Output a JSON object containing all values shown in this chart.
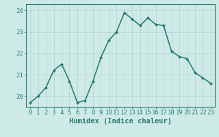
{
  "x": [
    0,
    1,
    2,
    3,
    4,
    5,
    6,
    7,
    8,
    9,
    10,
    11,
    12,
    13,
    14,
    15,
    16,
    17,
    18,
    19,
    20,
    21,
    22,
    23
  ],
  "y": [
    19.7,
    20.0,
    20.4,
    21.2,
    21.5,
    20.7,
    19.7,
    19.8,
    20.7,
    21.8,
    22.6,
    23.0,
    23.9,
    23.6,
    23.3,
    23.65,
    23.35,
    23.3,
    22.1,
    21.85,
    21.75,
    21.1,
    20.85,
    20.6
  ],
  "line_color": "#2d7d6e",
  "marker": "D",
  "marker_size": 2.0,
  "bg_color": "#ceeae7",
  "grid_color": "#b0d4d0",
  "xlabel": "Humidex (Indice chaleur)",
  "xlim": [
    -0.5,
    23.5
  ],
  "ylim": [
    19.5,
    24.3
  ],
  "yticks": [
    20,
    21,
    22,
    23,
    24
  ],
  "xticks": [
    0,
    1,
    2,
    3,
    4,
    5,
    6,
    7,
    8,
    9,
    10,
    11,
    12,
    13,
    14,
    15,
    16,
    17,
    18,
    19,
    20,
    21,
    22,
    23
  ],
  "xlabel_fontsize": 7.5,
  "tick_fontsize": 6.5,
  "line_width": 1.2,
  "axis_color": "#2d7d6e",
  "spine_color": "#2d7d6e"
}
